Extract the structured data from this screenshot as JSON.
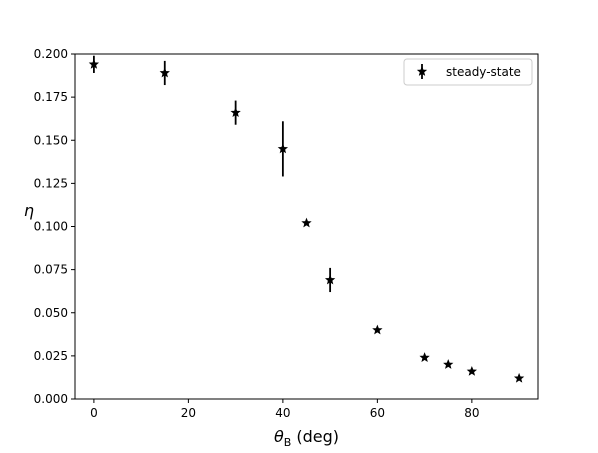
{
  "chart_data": {
    "type": "scatter",
    "title": "",
    "xlabel": "θB (deg)",
    "xlabel_parts": {
      "symbol": "θ",
      "subscript": "B",
      "unit": " (deg)"
    },
    "ylabel": "η",
    "xlim": [
      -4,
      94
    ],
    "ylim": [
      0.0,
      0.2
    ],
    "xticks": [
      0,
      20,
      40,
      60,
      80
    ],
    "xtick_labels": [
      "0",
      "20",
      "40",
      "60",
      "80"
    ],
    "yticks": [
      0.0,
      0.025,
      0.05,
      0.075,
      0.1,
      0.125,
      0.15,
      0.175,
      0.2
    ],
    "ytick_labels": [
      "0.000",
      "0.025",
      "0.050",
      "0.075",
      "0.100",
      "0.125",
      "0.150",
      "0.175",
      "0.200"
    ],
    "grid": false,
    "legend_position": "top-right",
    "series": [
      {
        "name": "steady-state",
        "marker": "star",
        "color": "#000000",
        "points": [
          {
            "x": 0,
            "y": 0.194,
            "err": 0.005
          },
          {
            "x": 15,
            "y": 0.189,
            "err": 0.007
          },
          {
            "x": 30,
            "y": 0.166,
            "err": 0.007
          },
          {
            "x": 40,
            "y": 0.145,
            "err": 0.016
          },
          {
            "x": 45,
            "y": 0.102,
            "err": 0.001
          },
          {
            "x": 50,
            "y": 0.069,
            "err": 0.007
          },
          {
            "x": 60,
            "y": 0.04,
            "err": 0.001
          },
          {
            "x": 70,
            "y": 0.024,
            "err": 0.001
          },
          {
            "x": 75,
            "y": 0.02,
            "err": 0.001
          },
          {
            "x": 80,
            "y": 0.016,
            "err": 0.001
          },
          {
            "x": 90,
            "y": 0.012,
            "err": 0.001
          }
        ]
      }
    ]
  }
}
